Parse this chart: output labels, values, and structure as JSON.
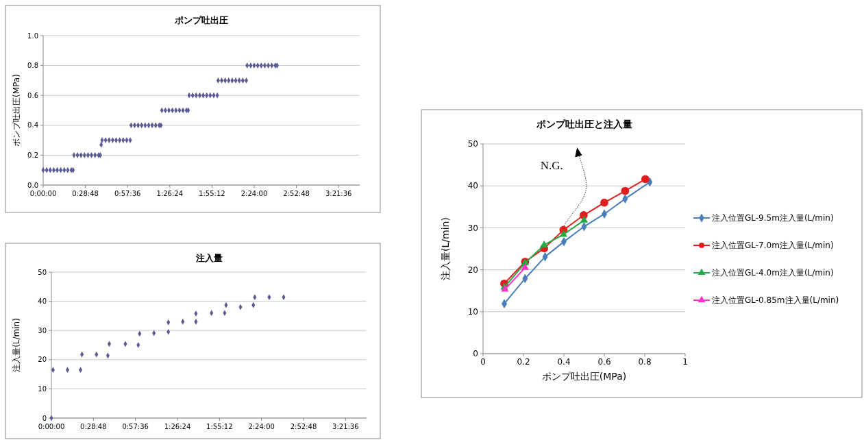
{
  "chart_data": [
    {
      "type": "scatter",
      "title": "ポンプ吐出圧",
      "ylabel": "ポンプ吐出圧(MPa)",
      "color": "#5b5b94",
      "marker": "diamond",
      "grid": "y",
      "legend": false,
      "x": [
        0,
        0.04,
        0.08,
        0.12,
        0.16,
        0.2,
        0.24,
        0.28,
        0.32,
        0.34,
        0.35,
        0.39,
        0.43,
        0.47,
        0.51,
        0.55,
        0.59,
        0.63,
        0.65,
        0.66,
        0.67,
        0.71,
        0.75,
        0.79,
        0.83,
        0.87,
        0.91,
        0.95,
        0.99,
        1.0,
        1.04,
        1.08,
        1.12,
        1.16,
        1.2,
        1.24,
        1.28,
        1.32,
        1.34,
        1.35,
        1.39,
        1.43,
        1.47,
        1.51,
        1.55,
        1.59,
        1.63,
        1.65,
        1.66,
        1.7,
        1.74,
        1.78,
        1.82,
        1.86,
        1.9,
        1.94,
        1.98,
        1.99,
        2.03,
        2.07,
        2.11,
        2.15,
        2.19,
        2.23,
        2.27,
        2.31,
        2.32,
        2.36,
        2.4,
        2.44,
        2.48,
        2.52,
        2.56,
        2.6,
        2.64,
        2.66
      ],
      "values": [
        0.1,
        0.1,
        0.1,
        0.1,
        0.1,
        0.1,
        0.1,
        0.1,
        0.1,
        0.1,
        0.2,
        0.2,
        0.2,
        0.2,
        0.2,
        0.2,
        0.2,
        0.2,
        0.2,
        0.27,
        0.3,
        0.3,
        0.3,
        0.3,
        0.3,
        0.3,
        0.3,
        0.3,
        0.3,
        0.4,
        0.4,
        0.4,
        0.4,
        0.4,
        0.4,
        0.4,
        0.4,
        0.4,
        0.4,
        0.5,
        0.5,
        0.5,
        0.5,
        0.5,
        0.5,
        0.5,
        0.5,
        0.5,
        0.6,
        0.6,
        0.6,
        0.6,
        0.6,
        0.6,
        0.6,
        0.6,
        0.6,
        0.7,
        0.7,
        0.7,
        0.7,
        0.7,
        0.7,
        0.7,
        0.7,
        0.7,
        0.8,
        0.8,
        0.8,
        0.8,
        0.8,
        0.8,
        0.8,
        0.8,
        0.8,
        0.8
      ],
      "xlim": [
        0,
        3.6
      ],
      "xticks": [
        {
          "value": 0,
          "label": "0:00:00"
        },
        {
          "value": 0.48,
          "label": "0:28:48"
        },
        {
          "value": 0.96,
          "label": "0:57:36"
        },
        {
          "value": 1.44,
          "label": "1:26:24"
        },
        {
          "value": 1.92,
          "label": "1:55:12"
        },
        {
          "value": 2.4,
          "label": "2:24:00"
        },
        {
          "value": 2.88,
          "label": "2:52:48"
        },
        {
          "value": 3.36,
          "label": "3:21:36"
        }
      ],
      "ylim": [
        0,
        1
      ],
      "yticks": [
        {
          "value": 0,
          "label": "0.0"
        },
        0.2,
        0.4,
        0.6,
        0.8,
        {
          "value": 1,
          "label": "1.0"
        }
      ]
    },
    {
      "type": "scatter",
      "title": "注入量",
      "ylabel": "注入量(L/min)",
      "color": "#5b5b94",
      "marker": "diamond",
      "grid": "y",
      "legend": false,
      "x": [
        0,
        0.019,
        0.184,
        0.333,
        0.349,
        0.515,
        0.645,
        0.661,
        0.845,
        0.992,
        1.008,
        1.171,
        1.336,
        1.336,
        1.501,
        1.651,
        1.651,
        1.829,
        1.979,
        1.995,
        2.16,
        2.307,
        2.323,
        2.488,
        2.653
      ],
      "values": [
        0,
        16.5,
        16.5,
        16.5,
        21.8,
        21.8,
        21.4,
        25.4,
        25.4,
        25,
        28.9,
        29.1,
        29.5,
        32.8,
        33,
        33,
        35.8,
        36,
        36,
        38.7,
        38,
        38.7,
        41.4,
        41.4,
        41.4
      ],
      "xlim": [
        0,
        3.6
      ],
      "xticks": [
        {
          "value": 0,
          "label": "0:00:00"
        },
        {
          "value": 0.48,
          "label": "0:28:48"
        },
        {
          "value": 0.96,
          "label": "0:57:36"
        },
        {
          "value": 1.44,
          "label": "1:26:24"
        },
        {
          "value": 1.92,
          "label": "1:55:12"
        },
        {
          "value": 2.4,
          "label": "2:24:00"
        },
        {
          "value": 2.88,
          "label": "2:52:48"
        },
        {
          "value": 3.36,
          "label": "3:21:36"
        }
      ],
      "ylim": [
        0,
        50
      ],
      "yticks": [
        0,
        10,
        20,
        30,
        40,
        50
      ]
    },
    {
      "type": "line",
      "title": "ポンプ吐出圧と注入量",
      "xlabel": "ポンプ吐出圧(MPa)",
      "ylabel": "注入量(L/min)",
      "grid": "y",
      "legend": "right",
      "annotations": [
        "N.G."
      ],
      "xlim": [
        0,
        1
      ],
      "xticks": [
        0,
        0.2,
        0.4,
        0.6,
        0.8,
        1
      ],
      "ylim": [
        0,
        50
      ],
      "yticks": [
        0,
        10,
        20,
        30,
        40,
        50
      ],
      "series": [
        {
          "name": "注入位置GL-9.5m注入量(L/min)",
          "color": "#4a7ebb",
          "marker": "diamond",
          "x": [
            0.105,
            0.208,
            0.307,
            0.4,
            0.5,
            0.6,
            0.703,
            0.825
          ],
          "values": [
            11.9,
            17.9,
            23.1,
            26.7,
            30.3,
            33.3,
            36.9,
            40.9
          ]
        },
        {
          "name": "注入位置GL-7.0m注入量(L/min)",
          "color": "#e02020",
          "marker": "circle",
          "x": [
            0.105,
            0.208,
            0.302,
            0.398,
            0.498,
            0.6,
            0.703,
            0.803
          ],
          "values": [
            16.7,
            21.9,
            25.1,
            29.5,
            33,
            36,
            38.8,
            41.6
          ]
        },
        {
          "name": "注入位置GL-4.0m注入量(L/min)",
          "color": "#22aa44",
          "marker": "triangle",
          "x": [
            0.105,
            0.208,
            0.302,
            0.398,
            0.5
          ],
          "values": [
            15.8,
            21.6,
            25.9,
            28.4,
            31.8
          ]
        },
        {
          "name": "注入位置GL-0.85m注入量(L/min)",
          "color": "#ff33cc",
          "marker": "triangle",
          "x": [
            0.108,
            0.208
          ],
          "values": [
            15.3,
            20.5
          ]
        }
      ]
    }
  ]
}
